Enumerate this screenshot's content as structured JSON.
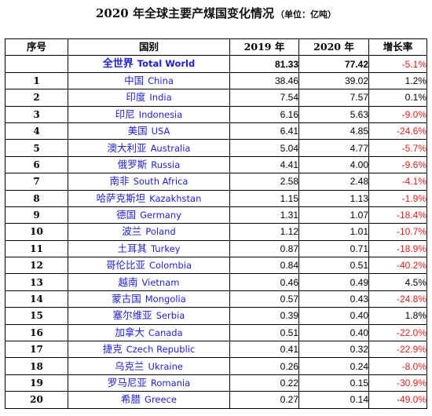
{
  "title": {
    "main": "2020 年全球主要产煤国变化情况",
    "unit": "（单位：亿吨）"
  },
  "colors": {
    "country_text": "#1f1fcc",
    "negative_rate": "#e02020",
    "positive_rate": "#000000"
  },
  "table": {
    "headers": {
      "index": "序号",
      "country": "国别",
      "y2019": "2019 年",
      "y2020": "2020 年",
      "rate": "增长率"
    },
    "world": {
      "index": "",
      "country_zh": "全世界",
      "country_en": "Total World",
      "y2019": "81.33",
      "y2020": "77.42",
      "rate": "-5.1%"
    },
    "rows": [
      {
        "index": "1",
        "country_zh": "中国",
        "country_en": "China",
        "y2019": "38.46",
        "y2020": "39.02",
        "rate": "1.2%"
      },
      {
        "index": "2",
        "country_zh": "印度",
        "country_en": "India",
        "y2019": "7.54",
        "y2020": "7.57",
        "rate": "0.1%"
      },
      {
        "index": "3",
        "country_zh": "印尼",
        "country_en": "Indonesia",
        "y2019": "6.16",
        "y2020": "5.63",
        "rate": "-9.0%"
      },
      {
        "index": "4",
        "country_zh": "美国",
        "country_en": "USA",
        "y2019": "6.41",
        "y2020": "4.85",
        "rate": "-24.6%"
      },
      {
        "index": "5",
        "country_zh": "澳大利亚",
        "country_en": "Australia",
        "y2019": "5.04",
        "y2020": "4.77",
        "rate": "-5.7%"
      },
      {
        "index": "6",
        "country_zh": "俄罗斯",
        "country_en": "Russia",
        "y2019": "4.41",
        "y2020": "4.00",
        "rate": "-9.6%"
      },
      {
        "index": "7",
        "country_zh": "南非",
        "country_en": "South Africa",
        "y2019": "2.58",
        "y2020": "2.48",
        "rate": "-4.1%"
      },
      {
        "index": "8",
        "country_zh": "哈萨克斯坦",
        "country_en": "Kazakhstan",
        "y2019": "1.15",
        "y2020": "1.13",
        "rate": "-1.9%"
      },
      {
        "index": "9",
        "country_zh": "德国",
        "country_en": "Germany",
        "y2019": "1.31",
        "y2020": "1.07",
        "rate": "-18.4%"
      },
      {
        "index": "10",
        "country_zh": "波兰",
        "country_en": "Poland",
        "y2019": "1.12",
        "y2020": "1.01",
        "rate": "-10.7%"
      },
      {
        "index": "11",
        "country_zh": "土耳其",
        "country_en": "Turkey",
        "y2019": "0.87",
        "y2020": "0.71",
        "rate": "-18.9%"
      },
      {
        "index": "12",
        "country_zh": "哥伦比亚",
        "country_en": "Colombia",
        "y2019": "0.84",
        "y2020": "0.51",
        "rate": "-40.2%"
      },
      {
        "index": "13",
        "country_zh": "越南",
        "country_en": "Vietnam",
        "y2019": "0.46",
        "y2020": "0.49",
        "rate": "4.5%"
      },
      {
        "index": "14",
        "country_zh": "蒙古国",
        "country_en": "Mongolia",
        "y2019": "0.57",
        "y2020": "0.43",
        "rate": "-24.8%"
      },
      {
        "index": "15",
        "country_zh": "塞尔维亚",
        "country_en": "Serbia",
        "y2019": "0.39",
        "y2020": "0.40",
        "rate": "1.8%"
      },
      {
        "index": "16",
        "country_zh": "加拿大",
        "country_en": "Canada",
        "y2019": "0.51",
        "y2020": "0.40",
        "rate": "-22.0%"
      },
      {
        "index": "17",
        "country_zh": "捷克",
        "country_en": "Czech Republic",
        "y2019": "0.41",
        "y2020": "0.32",
        "rate": "-22.9%"
      },
      {
        "index": "18",
        "country_zh": "乌克兰",
        "country_en": "Ukraine",
        "y2019": "0.26",
        "y2020": "0.24",
        "rate": "-8.0%"
      },
      {
        "index": "19",
        "country_zh": "罗马尼亚",
        "country_en": "Romania",
        "y2019": "0.22",
        "y2020": "0.15",
        "rate": "-30.9%"
      },
      {
        "index": "20",
        "country_zh": "希腊",
        "country_en": "Greece",
        "y2019": "0.27",
        "y2020": "0.14",
        "rate": "-49.0%"
      }
    ]
  }
}
